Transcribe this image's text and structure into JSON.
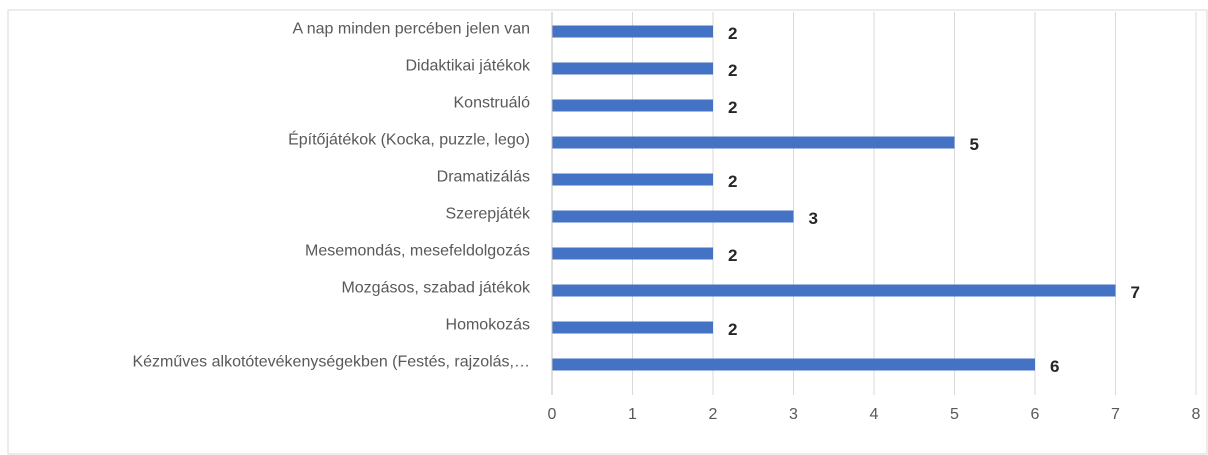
{
  "chart_data": {
    "type": "bar",
    "orientation": "horizontal",
    "categories": [
      "A nap minden percében jelen van",
      "Didaktikai játékok",
      "Konstruáló",
      "Építőjátékok (Kocka, puzzle, lego)",
      "Dramatizálás",
      "Szerepjáték",
      "Mesemondás, mesefeldolgozás",
      "Mozgásos, szabad játékok",
      "Homokozás",
      "Kézműves alkotótevékenységekben (Festés, rajzolás,…"
    ],
    "values": [
      2,
      2,
      2,
      5,
      2,
      3,
      2,
      7,
      2,
      6
    ],
    "color": "#4472c4",
    "xlim": [
      0,
      8
    ],
    "xticks": [
      0,
      1,
      2,
      3,
      4,
      5,
      6,
      7,
      8
    ],
    "grid": true
  }
}
